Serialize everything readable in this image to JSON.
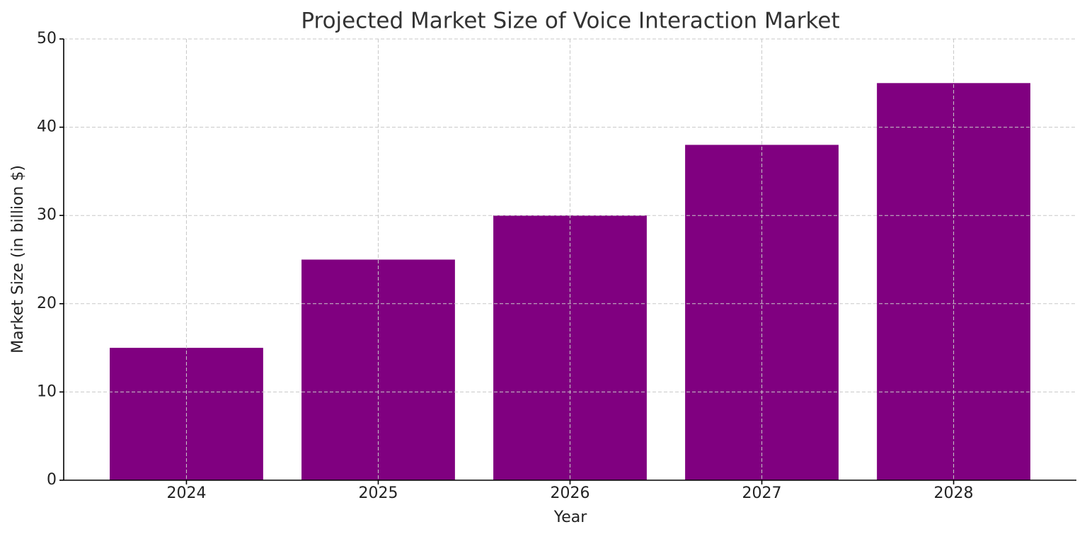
{
  "chart_data": {
    "type": "bar",
    "title": "Projected Market Size of Voice Interaction Market",
    "x_label": "Year",
    "y_label": "Market Size (in billion $)",
    "categories": [
      "2024",
      "2025",
      "2026",
      "2027",
      "2028"
    ],
    "values": [
      15,
      25,
      30,
      38,
      45
    ],
    "color": "#800080",
    "ylim": [
      0,
      50
    ],
    "yticks": [
      0,
      10,
      20,
      30,
      40,
      50
    ],
    "grid": true
  }
}
